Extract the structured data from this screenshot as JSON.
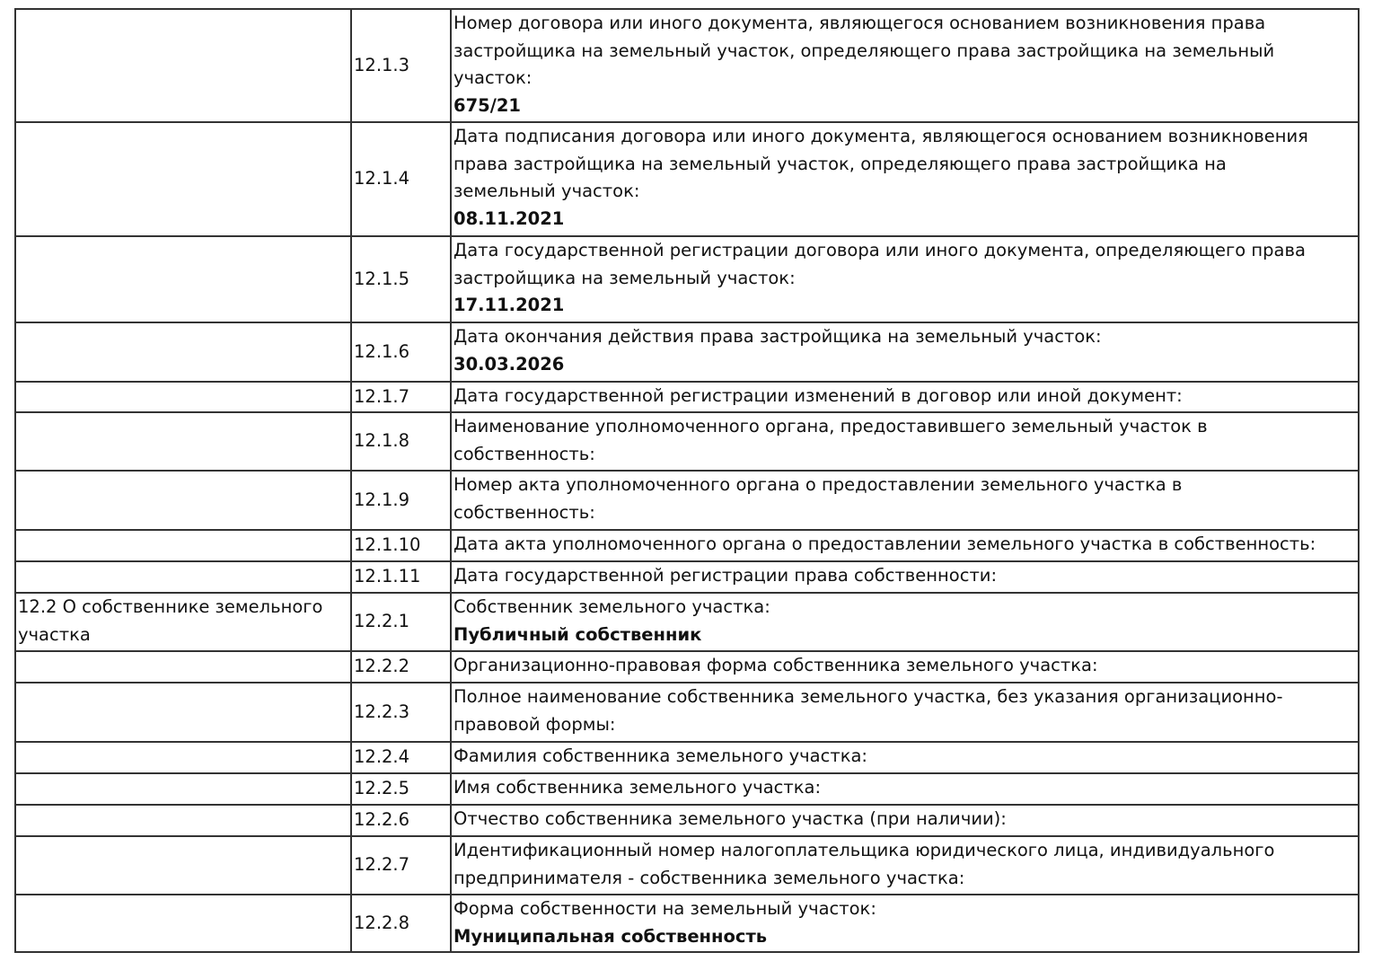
{
  "rows": [
    {
      "section": [],
      "num": "12.1.3",
      "lines": [
        "Номер договора или иного документа, являющегося основанием возникновения права",
        "застройщика на земельный участок, определяющего права застройщика на земельный",
        "участок:"
      ],
      "value": "675/21",
      "h": 126
    },
    {
      "section": [],
      "num": "12.1.4",
      "lines": [
        "Дата подписания договора или иного документа, являющегося основанием возникновения",
        "права застройщика на земельный участок, определяющего права застройщика на",
        "земельный участок:"
      ],
      "value": "08.11.2021",
      "h": 127
    },
    {
      "section": [],
      "num": "12.1.5",
      "lines": [
        "Дата государственной регистрации договора или иного документа, определяющего права",
        "застройщика на земельный участок:"
      ],
      "value": "17.11.2021",
      "h": 96
    },
    {
      "section": [],
      "num": "12.1.6",
      "lines": [
        "Дата окончания действия права застройщика на земельный участок:"
      ],
      "value": "30.03.2026",
      "h": 66
    },
    {
      "section": [],
      "num": "12.1.7",
      "lines": [
        "Дата государственной регистрации изменений в договор или иной документ:"
      ],
      "value": "",
      "h": 34
    },
    {
      "section": [],
      "num": "12.1.8",
      "lines": [
        "Наименование уполномоченного органа, предоставившего земельный участок в",
        "собственность:"
      ],
      "value": "",
      "h": 65
    },
    {
      "section": [],
      "num": "12.1.9",
      "lines": [
        "Номер акта уполномоченного органа о предоставлении земельного участка в",
        "собственность:"
      ],
      "value": "",
      "h": 66
    },
    {
      "section": [],
      "num": "12.1.10",
      "lines": [
        "Дата акта уполномоченного органа о предоставлении земельного участка в собственность:"
      ],
      "value": "",
      "h": 35
    },
    {
      "section": [],
      "num": "12.1.11",
      "lines": [
        "Дата государственной регистрации права собственности:"
      ],
      "value": "",
      "h": 35
    },
    {
      "section": [
        "12.2 О собственнике земельного",
        "участка"
      ],
      "num": "12.2.1",
      "lines": [
        "Собственник земельного участка:"
      ],
      "value": "Публичный собственник",
      "h": 65
    },
    {
      "section": [],
      "num": "12.2.2",
      "lines": [
        "Организационно-правовая форма собственника земельного участка:"
      ],
      "value": "",
      "h": 35
    },
    {
      "section": [],
      "num": "12.2.3",
      "lines": [
        "Полное наименование собственника земельного участка, без указания организационно-",
        "правовой формы:"
      ],
      "value": "",
      "h": 66
    },
    {
      "section": [],
      "num": "12.2.4",
      "lines": [
        "Фамилия собственника земельного участка:"
      ],
      "value": "",
      "h": 35
    },
    {
      "section": [],
      "num": "12.2.5",
      "lines": [
        "Имя собственника земельного участка:"
      ],
      "value": "",
      "h": 35
    },
    {
      "section": [],
      "num": "12.2.6",
      "lines": [
        "Отчество собственника земельного участка (при наличии):"
      ],
      "value": "",
      "h": 35
    },
    {
      "section": [],
      "num": "12.2.7",
      "lines": [
        "Идентификационный номер налогоплательщика юридического лица, индивидуального",
        "предпринимателя - собственника земельного участка:"
      ],
      "value": "",
      "h": 65
    },
    {
      "section": [],
      "num": "12.2.8",
      "lines": [
        "Форма собственности на земельный участок:"
      ],
      "value": "Муниципальная собственность",
      "h": 64
    }
  ]
}
